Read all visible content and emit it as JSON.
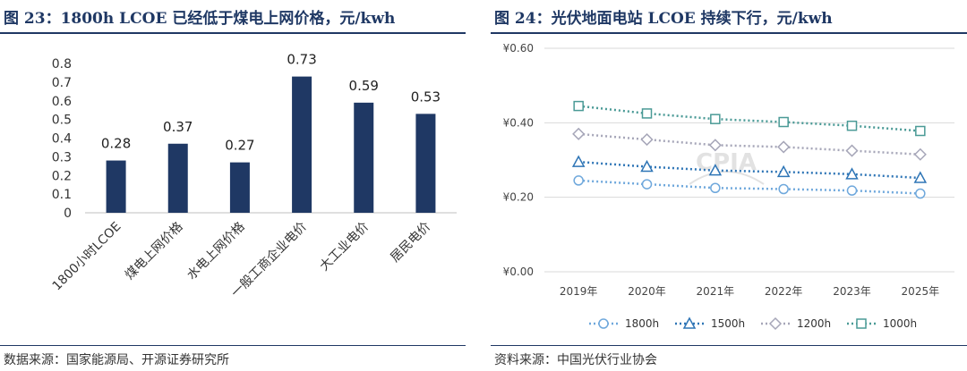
{
  "left": {
    "title": "图 23：1800h LCOE 已经低于煤电上网价格，元/kwh",
    "source": "数据来源：国家能源局、开源证券研究所",
    "colors": {
      "bar": "#1f3864",
      "accent": "#1f3864"
    },
    "chart_data": {
      "type": "bar",
      "categories": [
        "1800小时LCOE",
        "煤电上网价格",
        "水电上网价格",
        "一般工商企业电价",
        "大工业电价",
        "居民电价"
      ],
      "values": [
        0.28,
        0.37,
        0.27,
        0.73,
        0.59,
        0.53
      ],
      "value_labels": [
        "0.28",
        "0.37",
        "0.27",
        "0.73",
        "0.59",
        "0.53"
      ],
      "ylim": [
        0,
        0.8
      ],
      "yticks": [
        "0",
        "0.1",
        "0.2",
        "0.3",
        "0.4",
        "0.5",
        "0.6",
        "0.7",
        "0.8"
      ],
      "grid": false
    }
  },
  "right": {
    "title": "图 24：光伏地面电站 LCOE 持续下行，元/kwh",
    "source": "资料来源：中国光伏行业协会",
    "watermark": "CPIA",
    "chart_data": {
      "type": "line",
      "x": [
        "2019年",
        "2020年",
        "2021年",
        "2022年",
        "2023年",
        "2025年"
      ],
      "ylim": [
        0,
        0.6
      ],
      "yticks": [
        "¥0.00",
        "¥0.20",
        "¥0.40",
        "¥0.60"
      ],
      "grid": true,
      "legend_position": "bottom",
      "series": [
        {
          "name": "1800h",
          "marker": "circle",
          "color": "#6fa8dc",
          "values": [
            0.245,
            0.235,
            0.225,
            0.222,
            0.218,
            0.21
          ]
        },
        {
          "name": "1500h",
          "marker": "triangle",
          "color": "#2e75b6",
          "values": [
            0.295,
            0.282,
            0.272,
            0.268,
            0.262,
            0.252
          ]
        },
        {
          "name": "1200h",
          "marker": "diamond",
          "color": "#a6a6b8",
          "values": [
            0.37,
            0.355,
            0.34,
            0.335,
            0.325,
            0.315
          ]
        },
        {
          "name": "1000h",
          "marker": "square",
          "color": "#4a9a96",
          "values": [
            0.445,
            0.425,
            0.41,
            0.402,
            0.392,
            0.378
          ]
        }
      ]
    }
  }
}
